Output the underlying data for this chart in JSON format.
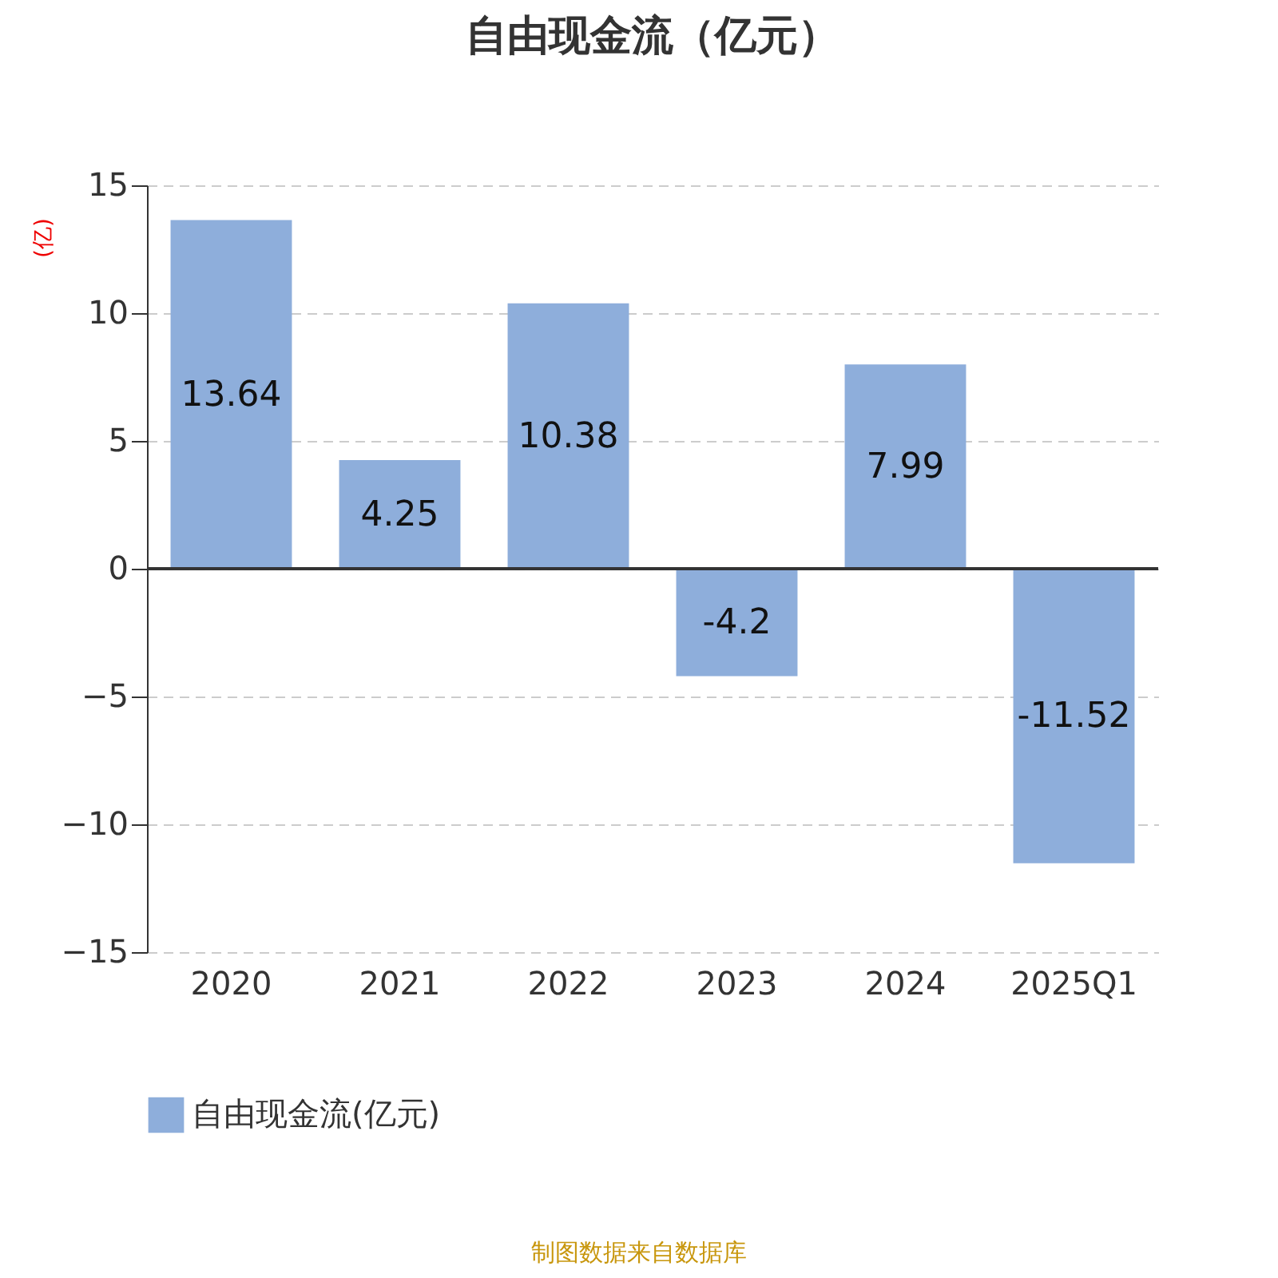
{
  "chart_data": {
    "type": "bar",
    "title": "自由现金流（亿元）",
    "ylabel": "(亿)",
    "categories": [
      "2020",
      "2021",
      "2022",
      "2023",
      "2024",
      "2025Q1"
    ],
    "series": [
      {
        "name": "自由现金流(亿元)",
        "color": "#8eaedb",
        "values": [
          13.64,
          4.25,
          10.38,
          -4.2,
          7.99,
          -11.52
        ]
      }
    ],
    "ylim": [
      -15,
      15
    ],
    "yticks": [
      -15,
      -10,
      -5,
      0,
      5,
      10,
      15
    ],
    "grid": "y",
    "line_style": "dashed",
    "legend": "bottom",
    "data_labels": true,
    "annotations": [
      "制图数据来自数据库"
    ]
  }
}
